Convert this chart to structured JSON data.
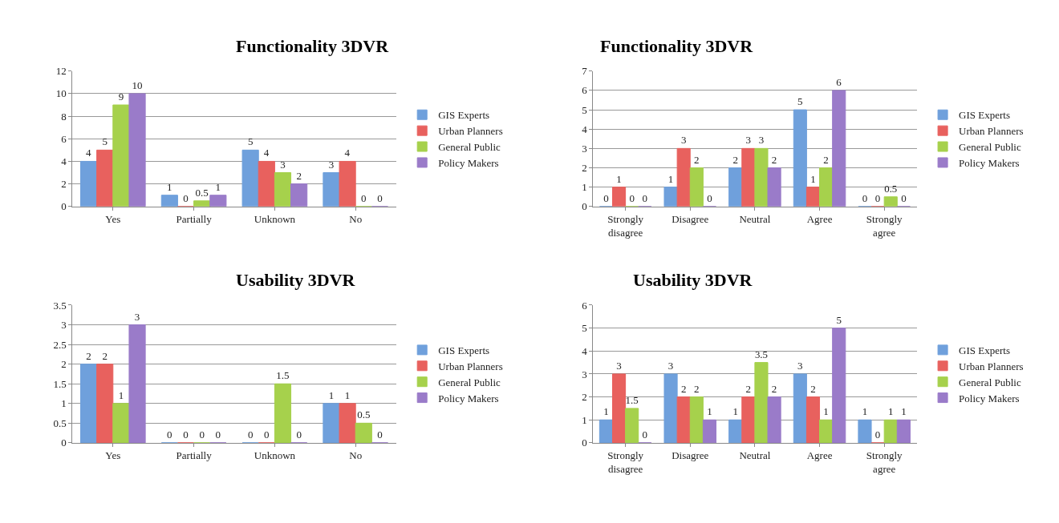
{
  "chart_data": [
    {
      "type": "bar",
      "title": "Functionality 3DVR",
      "categories": [
        "Yes",
        "Partially",
        "Unknown",
        "No"
      ],
      "ylim": [
        0,
        12
      ],
      "yticks": [
        0,
        2,
        4,
        6,
        8,
        10,
        12
      ],
      "grid": "y",
      "legend": "right",
      "data_labels": true,
      "series": [
        {
          "name": "GIS Experts",
          "color": "#6fa0dc",
          "values": [
            4,
            1,
            5,
            3
          ]
        },
        {
          "name": "Urban Planners",
          "color": "#e8615e",
          "values": [
            5,
            0,
            4,
            4
          ]
        },
        {
          "name": "General Public",
          "color": "#a6d14c",
          "values": [
            9,
            0.5,
            3,
            0
          ]
        },
        {
          "name": "Policy Makers",
          "color": "#9a7bc9",
          "values": [
            10,
            1,
            2,
            0
          ]
        }
      ]
    },
    {
      "type": "bar",
      "title": "Functionality 3DVR",
      "categories": [
        "Strongly disagree",
        "Disagree",
        "Neutral",
        "Agree",
        "Strongly agree"
      ],
      "ylim": [
        0,
        7
      ],
      "yticks": [
        0,
        1,
        2,
        3,
        4,
        5,
        6,
        7
      ],
      "grid": "y",
      "legend": "right",
      "data_labels": true,
      "series": [
        {
          "name": "GIS Experts",
          "color": "#6fa0dc",
          "values": [
            0,
            1,
            2,
            5,
            0
          ]
        },
        {
          "name": "Urban Planners",
          "color": "#e8615e",
          "values": [
            1,
            3,
            3,
            1,
            0
          ]
        },
        {
          "name": "General Public",
          "color": "#a6d14c",
          "values": [
            0,
            2,
            3,
            2,
            0.5
          ]
        },
        {
          "name": "Policy Makers",
          "color": "#9a7bc9",
          "values": [
            0,
            0,
            2,
            6,
            0
          ]
        }
      ]
    },
    {
      "type": "bar",
      "title": "Usability 3DVR",
      "categories": [
        "Yes",
        "Partially",
        "Unknown",
        "No"
      ],
      "ylim": [
        0,
        3.5
      ],
      "yticks": [
        0,
        0.5,
        1,
        1.5,
        2,
        2.5,
        3,
        3.5
      ],
      "grid": "y",
      "legend": "right",
      "data_labels": true,
      "series": [
        {
          "name": "GIS Experts",
          "color": "#6fa0dc",
          "values": [
            2,
            0,
            0,
            1
          ]
        },
        {
          "name": "Urban Planners",
          "color": "#e8615e",
          "values": [
            2,
            0,
            0,
            1
          ]
        },
        {
          "name": "General Public",
          "color": "#a6d14c",
          "values": [
            1,
            0,
            1.5,
            0.5
          ]
        },
        {
          "name": "Policy Makers",
          "color": "#9a7bc9",
          "values": [
            3,
            0,
            0,
            0
          ]
        }
      ]
    },
    {
      "type": "bar",
      "title": "Usability 3DVR",
      "categories": [
        "Strongly disagree",
        "Disagree",
        "Neutral",
        "Agree",
        "Strongly agree"
      ],
      "ylim": [
        0,
        6
      ],
      "yticks": [
        0,
        1,
        2,
        3,
        4,
        5,
        6
      ],
      "grid": "y",
      "legend": "right",
      "data_labels": true,
      "series": [
        {
          "name": "GIS Experts",
          "color": "#6fa0dc",
          "values": [
            1,
            3,
            1,
            3,
            1
          ]
        },
        {
          "name": "Urban Planners",
          "color": "#e8615e",
          "values": [
            3,
            2,
            2,
            2,
            0
          ]
        },
        {
          "name": "General Public",
          "color": "#a6d14c",
          "values": [
            1.5,
            2,
            3.5,
            1,
            1
          ]
        },
        {
          "name": "Policy Makers",
          "color": "#9a7bc9",
          "values": [
            0,
            1,
            2,
            5,
            1
          ]
        }
      ]
    }
  ]
}
